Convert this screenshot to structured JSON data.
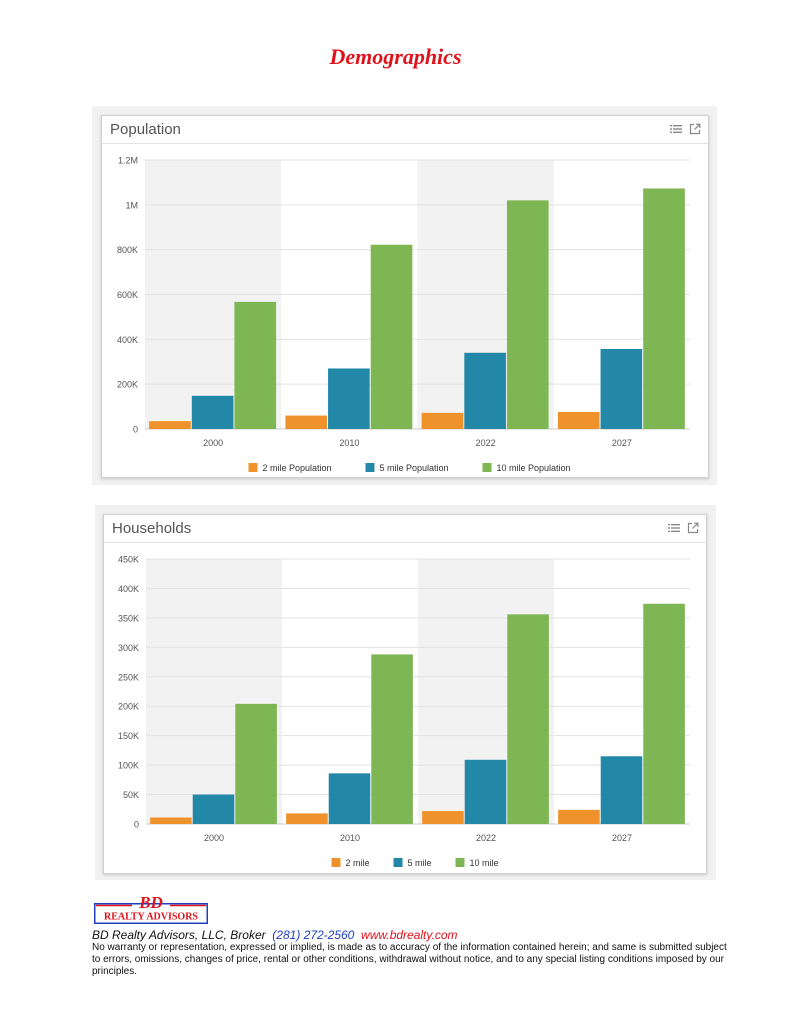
{
  "page": {
    "title": "Demographics"
  },
  "colors": {
    "two_mile": "#f0922b",
    "five_mile": "#2387a8",
    "ten_mile": "#7db653",
    "title_red": "#e0121b",
    "band": "#f2f2f2"
  },
  "icons": {
    "menu": "list-icon",
    "expand": "external-link-icon"
  },
  "charts": [
    {
      "header": "Population"
    },
    {
      "header": "Households"
    }
  ],
  "chart_data": [
    {
      "type": "bar",
      "title": "Population",
      "categories": [
        "2000",
        "2010",
        "2022",
        "2027"
      ],
      "series": [
        {
          "name": "2 mile Population",
          "values": [
            35000,
            60000,
            72000,
            76000
          ]
        },
        {
          "name": "5 mile Population",
          "values": [
            148000,
            270000,
            340000,
            357000
          ]
        },
        {
          "name": "10 mile Population",
          "values": [
            567000,
            822000,
            1020000,
            1073000
          ]
        }
      ],
      "ylim": [
        0,
        1200000
      ],
      "yticks": [
        0,
        200000,
        400000,
        600000,
        800000,
        1000000,
        1200000
      ],
      "ytick_labels": [
        "0",
        "200K",
        "400K",
        "600K",
        "800K",
        "1M",
        "1.2M"
      ],
      "grid": true,
      "legend_position": "bottom"
    },
    {
      "type": "bar",
      "title": "Households",
      "categories": [
        "2000",
        "2010",
        "2022",
        "2027"
      ],
      "series": [
        {
          "name": "2 mile",
          "values": [
            11000,
            18000,
            22000,
            24000
          ]
        },
        {
          "name": "5 mile",
          "values": [
            50000,
            86000,
            109000,
            115000
          ]
        },
        {
          "name": "10 mile",
          "values": [
            204000,
            288000,
            356000,
            374000
          ]
        }
      ],
      "ylim": [
        0,
        450000
      ],
      "yticks": [
        0,
        50000,
        100000,
        150000,
        200000,
        250000,
        300000,
        350000,
        400000,
        450000
      ],
      "ytick_labels": [
        "0",
        "50K",
        "100K",
        "150K",
        "200K",
        "250K",
        "300K",
        "350K",
        "400K",
        "450K"
      ],
      "grid": true,
      "legend_position": "bottom"
    }
  ],
  "footer": {
    "logo_text": "BD",
    "logo_subtext": "REALTY ADVISORS",
    "broker_name": "BD Realty Advisors, LLC, Broker",
    "phone": "(281) 272-2560",
    "website": "www.bdrealty.com",
    "disclaimer": "No warranty or representation, expressed or implied, is made as to accuracy of the information contained herein; and same is submitted subject to errors, omissions, changes of price, rental or other conditions, withdrawal without notice, and to any special listing conditions imposed by our principles."
  }
}
